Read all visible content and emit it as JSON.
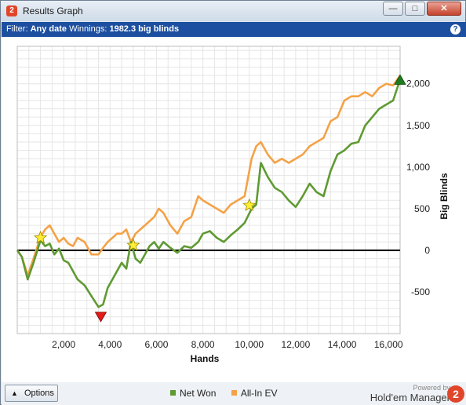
{
  "window": {
    "title": "Results Graph"
  },
  "filter_bar": {
    "filter_label": "Filter:",
    "filter_value": "Any date",
    "winnings_label": "Winnings:",
    "winnings_value": "1982.3 big blinds"
  },
  "footer": {
    "options_label": "Options",
    "brand_powered": "Powered by",
    "brand_name": "Hold'em Manager",
    "brand_logo": "2"
  },
  "colors": {
    "net_won": "#5f9a32",
    "all_in_ev": "#f4a247",
    "zero_line": "#000000",
    "title_bar_filter": "#1d4fa0"
  },
  "chart_data": {
    "type": "line",
    "xlabel": "Hands",
    "ylabel": "Big Blinds",
    "xlim": [
      0,
      16500
    ],
    "ylim": [
      -1000,
      2450
    ],
    "x_ticks": [
      2000,
      4000,
      6000,
      8000,
      10000,
      12000,
      14000,
      16000
    ],
    "x_tick_labels": [
      "2,000",
      "4,000",
      "6,000",
      "8,000",
      "10,000",
      "12,000",
      "14,000",
      "16,000"
    ],
    "y_ticks": [
      2000,
      1500,
      1000,
      500,
      0,
      -500
    ],
    "y_tick_labels": [
      "2,000",
      "1,500",
      "1,000",
      "500",
      "0",
      "-500"
    ],
    "grid": true,
    "legend_position": "bottom-center",
    "series": [
      {
        "name": "Net Won",
        "x": [
          0,
          200,
          450,
          700,
          1000,
          1200,
          1400,
          1600,
          1800,
          2000,
          2200,
          2400,
          2600,
          2900,
          3200,
          3500,
          3700,
          3900,
          4100,
          4300,
          4500,
          4700,
          4900,
          5100,
          5300,
          5500,
          5700,
          5900,
          6100,
          6300,
          6600,
          6900,
          7200,
          7500,
          7800,
          8000,
          8300,
          8600,
          8900,
          9200,
          9500,
          9800,
          10100,
          10300,
          10500,
          10800,
          11100,
          11400,
          11700,
          12000,
          12300,
          12600,
          12900,
          13200,
          13500,
          13800,
          14100,
          14400,
          14700,
          15000,
          15300,
          15600,
          15900,
          16200,
          16500
        ],
        "values": [
          0,
          -80,
          -350,
          -150,
          120,
          50,
          80,
          -50,
          20,
          -120,
          -150,
          -250,
          -350,
          -420,
          -550,
          -680,
          -650,
          -450,
          -350,
          -250,
          -150,
          -220,
          100,
          -100,
          -150,
          -50,
          50,
          100,
          20,
          100,
          30,
          -30,
          50,
          30,
          100,
          200,
          230,
          150,
          100,
          180,
          250,
          330,
          500,
          550,
          1050,
          880,
          750,
          700,
          600,
          520,
          650,
          800,
          700,
          650,
          950,
          1150,
          1200,
          1280,
          1300,
          1500,
          1600,
          1700,
          1750,
          1800,
          2050
        ]
      },
      {
        "name": "All-In EV",
        "x": [
          0,
          200,
          450,
          700,
          1000,
          1200,
          1400,
          1600,
          1800,
          2000,
          2200,
          2400,
          2600,
          2900,
          3200,
          3500,
          3700,
          3900,
          4100,
          4300,
          4500,
          4700,
          4900,
          5100,
          5300,
          5500,
          5700,
          5900,
          6100,
          6300,
          6600,
          6900,
          7200,
          7500,
          7800,
          8000,
          8300,
          8600,
          8900,
          9200,
          9500,
          9800,
          10100,
          10300,
          10500,
          10800,
          11100,
          11400,
          11700,
          12000,
          12300,
          12600,
          12900,
          13200,
          13500,
          13800,
          14100,
          14400,
          14700,
          15000,
          15300,
          15600,
          15900,
          16200,
          16500
        ],
        "values": [
          0,
          -80,
          -300,
          -100,
          160,
          250,
          300,
          200,
          100,
          150,
          80,
          50,
          150,
          100,
          -50,
          -50,
          30,
          100,
          150,
          200,
          200,
          250,
          100,
          200,
          250,
          300,
          350,
          400,
          500,
          450,
          300,
          200,
          350,
          400,
          650,
          600,
          550,
          500,
          450,
          550,
          600,
          650,
          1100,
          1250,
          1300,
          1150,
          1050,
          1100,
          1050,
          1100,
          1150,
          1250,
          1300,
          1350,
          1550,
          1600,
          1800,
          1850,
          1850,
          1900,
          1850,
          1950,
          2000,
          1980,
          2100
        ]
      }
    ],
    "markers": [
      {
        "type": "star",
        "x": 1000,
        "y": 150
      },
      {
        "type": "star",
        "x": 5000,
        "y": 60
      },
      {
        "type": "star",
        "x": 10000,
        "y": 540
      },
      {
        "type": "triangle-down",
        "x": 3600,
        "y": -800
      },
      {
        "type": "triangle-up",
        "x": 16500,
        "y": 2050
      }
    ]
  }
}
